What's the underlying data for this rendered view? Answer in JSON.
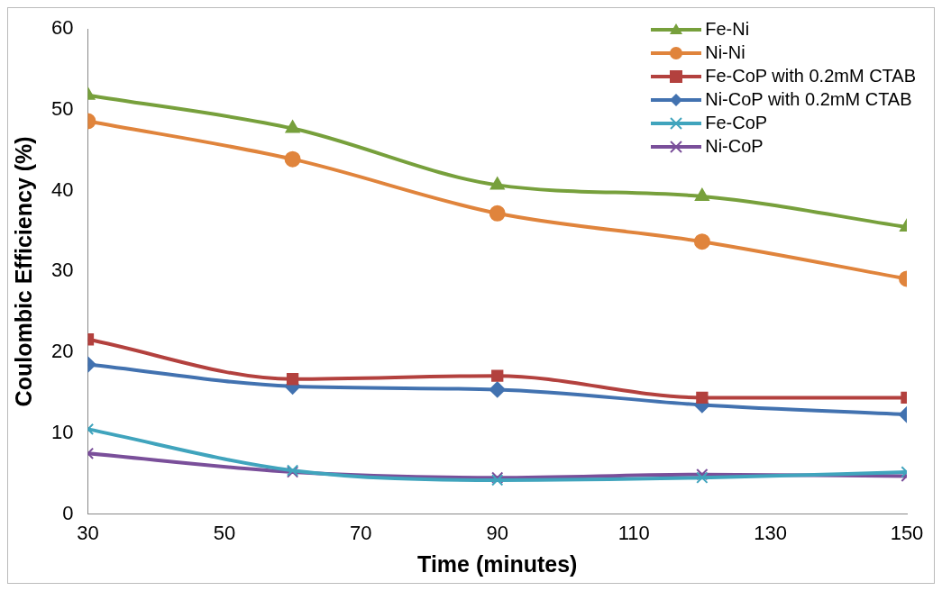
{
  "chart_data": {
    "type": "line",
    "xlabel": "Time (minutes)",
    "ylabel": "Coulombic Efficiency (%)",
    "x": [
      30,
      60,
      90,
      120,
      150
    ],
    "xlim": [
      30,
      150
    ],
    "xticks": [
      30,
      50,
      70,
      90,
      110,
      130,
      150
    ],
    "ylim": [
      0,
      60
    ],
    "yticks": [
      0,
      10,
      20,
      30,
      40,
      50,
      60
    ],
    "grid": false,
    "legend": "top right",
    "line_style": "solid",
    "series": [
      {
        "name": "Fe-Ni",
        "color": "#77a03c",
        "marker": "triangle",
        "values": [
          51.8,
          47.7,
          40.7,
          39.3,
          35.5
        ]
      },
      {
        "name": "Ni-Ni",
        "color": "#e0843c",
        "marker": "circle",
        "values": [
          48.6,
          43.9,
          37.2,
          33.7,
          29.1
        ]
      },
      {
        "name": "Fe-CoP with 0.2mM CTAB",
        "color": "#b3413e",
        "marker": "square",
        "values": [
          21.6,
          16.7,
          17.1,
          14.4,
          14.4
        ]
      },
      {
        "name": "Ni-CoP with 0.2mM CTAB",
        "color": "#4272b0",
        "marker": "diamond",
        "values": [
          18.5,
          15.8,
          15.4,
          13.5,
          12.3
        ]
      },
      {
        "name": "Fe-CoP",
        "color": "#40a4bd",
        "marker": "cross",
        "values": [
          10.5,
          5.4,
          4.2,
          4.5,
          5.2
        ]
      },
      {
        "name": "Ni-CoP",
        "color": "#7a4f9a",
        "marker": "cross",
        "values": [
          7.5,
          5.2,
          4.5,
          4.9,
          4.7
        ]
      }
    ]
  }
}
